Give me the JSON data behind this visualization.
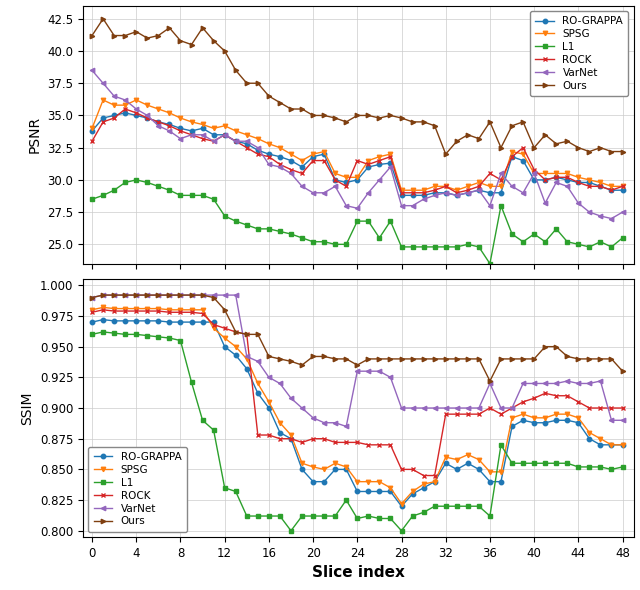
{
  "x": [
    0,
    1,
    2,
    3,
    4,
    5,
    6,
    7,
    8,
    9,
    10,
    11,
    12,
    13,
    14,
    15,
    16,
    17,
    18,
    19,
    20,
    21,
    22,
    23,
    24,
    25,
    26,
    27,
    28,
    29,
    30,
    31,
    32,
    33,
    34,
    35,
    36,
    37,
    38,
    39,
    40,
    41,
    42,
    43,
    44,
    45,
    46,
    47,
    48
  ],
  "psnr_rograpa": [
    33.8,
    34.8,
    35.0,
    35.2,
    35.0,
    34.8,
    34.5,
    34.3,
    34.0,
    33.8,
    34.0,
    33.5,
    33.5,
    33.0,
    32.8,
    32.3,
    32.0,
    31.8,
    31.5,
    31.0,
    31.8,
    32.0,
    30.0,
    29.8,
    30.0,
    31.0,
    31.2,
    31.3,
    28.8,
    28.8,
    28.8,
    29.0,
    29.0,
    28.8,
    29.0,
    29.2,
    29.0,
    29.0,
    31.8,
    31.5,
    30.0,
    30.0,
    30.2,
    30.0,
    29.8,
    29.8,
    29.5,
    29.2,
    29.2
  ],
  "psnr_spsg": [
    34.0,
    36.2,
    35.8,
    35.8,
    36.2,
    35.8,
    35.5,
    35.2,
    34.8,
    34.5,
    34.3,
    34.0,
    34.2,
    33.8,
    33.5,
    33.2,
    32.8,
    32.5,
    32.0,
    31.5,
    32.0,
    32.2,
    30.5,
    30.2,
    30.2,
    31.5,
    31.8,
    32.0,
    29.2,
    29.2,
    29.2,
    29.5,
    29.5,
    29.2,
    29.5,
    29.8,
    29.5,
    29.5,
    32.2,
    32.0,
    30.5,
    30.5,
    30.5,
    30.5,
    30.2,
    30.0,
    29.8,
    29.5,
    29.5
  ],
  "psnr_l1": [
    28.5,
    28.8,
    29.2,
    29.8,
    30.0,
    29.8,
    29.5,
    29.2,
    28.8,
    28.8,
    28.8,
    28.5,
    27.2,
    26.8,
    26.5,
    26.2,
    26.2,
    26.0,
    25.8,
    25.5,
    25.2,
    25.2,
    25.0,
    25.0,
    26.8,
    26.8,
    25.5,
    26.8,
    24.8,
    24.8,
    24.8,
    24.8,
    24.8,
    24.8,
    25.0,
    24.8,
    23.5,
    28.0,
    25.8,
    25.2,
    25.8,
    25.2,
    26.2,
    25.2,
    25.0,
    24.8,
    25.2,
    24.8,
    25.5
  ],
  "psnr_rock": [
    33.0,
    34.5,
    34.8,
    35.5,
    35.2,
    34.8,
    34.5,
    34.2,
    33.8,
    33.5,
    33.2,
    33.0,
    33.5,
    33.0,
    32.5,
    32.0,
    31.8,
    31.2,
    30.8,
    30.5,
    31.5,
    31.5,
    30.0,
    29.5,
    31.5,
    31.2,
    31.5,
    31.8,
    29.0,
    29.0,
    29.0,
    29.2,
    29.5,
    29.0,
    29.2,
    29.5,
    30.5,
    30.0,
    31.8,
    32.5,
    30.8,
    30.0,
    30.2,
    30.2,
    29.8,
    29.5,
    29.5,
    29.2,
    29.5
  ],
  "psnr_varnet": [
    38.5,
    37.5,
    36.5,
    36.2,
    35.5,
    35.0,
    34.2,
    33.8,
    33.2,
    33.5,
    33.5,
    33.0,
    33.5,
    33.0,
    33.0,
    32.5,
    31.2,
    31.0,
    30.5,
    29.5,
    29.0,
    29.0,
    29.5,
    28.0,
    27.8,
    29.0,
    30.0,
    31.0,
    28.0,
    28.0,
    28.5,
    28.8,
    29.0,
    28.8,
    29.0,
    29.2,
    28.0,
    30.5,
    29.5,
    29.0,
    30.5,
    28.2,
    29.8,
    29.5,
    28.2,
    27.5,
    27.2,
    27.0,
    27.5
  ],
  "psnr_ours": [
    41.2,
    42.5,
    41.2,
    41.2,
    41.5,
    41.0,
    41.2,
    41.8,
    40.8,
    40.5,
    41.8,
    40.8,
    40.0,
    38.5,
    37.5,
    37.5,
    36.5,
    36.0,
    35.5,
    35.5,
    35.0,
    35.0,
    34.8,
    34.5,
    35.0,
    35.0,
    34.8,
    35.0,
    34.8,
    34.5,
    34.5,
    34.2,
    32.0,
    33.0,
    33.5,
    33.2,
    34.5,
    32.5,
    34.2,
    34.5,
    32.5,
    33.5,
    32.8,
    33.0,
    32.5,
    32.2,
    32.5,
    32.2,
    32.2
  ],
  "ssim_rograpa": [
    0.97,
    0.972,
    0.971,
    0.971,
    0.971,
    0.971,
    0.971,
    0.97,
    0.97,
    0.97,
    0.97,
    0.97,
    0.95,
    0.943,
    0.932,
    0.912,
    0.9,
    0.88,
    0.875,
    0.85,
    0.84,
    0.84,
    0.85,
    0.85,
    0.832,
    0.832,
    0.832,
    0.832,
    0.82,
    0.83,
    0.835,
    0.84,
    0.855,
    0.85,
    0.855,
    0.85,
    0.84,
    0.84,
    0.885,
    0.89,
    0.888,
    0.888,
    0.89,
    0.89,
    0.888,
    0.875,
    0.87,
    0.87,
    0.87
  ],
  "ssim_spsg": [
    0.98,
    0.982,
    0.981,
    0.981,
    0.981,
    0.981,
    0.981,
    0.98,
    0.98,
    0.98,
    0.98,
    0.965,
    0.957,
    0.95,
    0.94,
    0.92,
    0.905,
    0.888,
    0.878,
    0.855,
    0.852,
    0.85,
    0.855,
    0.852,
    0.84,
    0.84,
    0.84,
    0.835,
    0.822,
    0.832,
    0.838,
    0.84,
    0.86,
    0.858,
    0.862,
    0.858,
    0.848,
    0.848,
    0.892,
    0.895,
    0.892,
    0.892,
    0.895,
    0.895,
    0.892,
    0.88,
    0.875,
    0.87,
    0.87
  ],
  "ssim_l1": [
    0.96,
    0.962,
    0.961,
    0.96,
    0.96,
    0.959,
    0.958,
    0.957,
    0.955,
    0.921,
    0.89,
    0.882,
    0.835,
    0.832,
    0.812,
    0.812,
    0.812,
    0.812,
    0.8,
    0.812,
    0.812,
    0.812,
    0.812,
    0.825,
    0.81,
    0.812,
    0.81,
    0.81,
    0.8,
    0.812,
    0.815,
    0.82,
    0.82,
    0.82,
    0.82,
    0.82,
    0.812,
    0.87,
    0.855,
    0.855,
    0.855,
    0.855,
    0.855,
    0.855,
    0.852,
    0.852,
    0.852,
    0.85,
    0.852
  ],
  "ssim_rock": [
    0.978,
    0.98,
    0.979,
    0.979,
    0.979,
    0.979,
    0.979,
    0.978,
    0.978,
    0.978,
    0.977,
    0.968,
    0.965,
    0.962,
    0.96,
    0.878,
    0.878,
    0.875,
    0.875,
    0.872,
    0.875,
    0.875,
    0.872,
    0.872,
    0.872,
    0.87,
    0.87,
    0.87,
    0.85,
    0.85,
    0.845,
    0.845,
    0.895,
    0.895,
    0.895,
    0.895,
    0.9,
    0.895,
    0.9,
    0.905,
    0.908,
    0.912,
    0.91,
    0.91,
    0.905,
    0.9,
    0.9,
    0.9,
    0.9
  ],
  "ssim_varnet": [
    0.99,
    0.992,
    0.992,
    0.992,
    0.992,
    0.992,
    0.992,
    0.992,
    0.992,
    0.992,
    0.992,
    0.992,
    0.992,
    0.992,
    0.942,
    0.938,
    0.925,
    0.92,
    0.908,
    0.9,
    0.892,
    0.888,
    0.888,
    0.885,
    0.93,
    0.93,
    0.93,
    0.925,
    0.9,
    0.9,
    0.9,
    0.9,
    0.9,
    0.9,
    0.9,
    0.9,
    0.92,
    0.9,
    0.9,
    0.92,
    0.92,
    0.92,
    0.92,
    0.922,
    0.92,
    0.92,
    0.922,
    0.89,
    0.89
  ],
  "ssim_ours": [
    0.99,
    0.992,
    0.992,
    0.992,
    0.992,
    0.992,
    0.992,
    0.992,
    0.992,
    0.992,
    0.992,
    0.99,
    0.98,
    0.962,
    0.96,
    0.96,
    0.942,
    0.94,
    0.938,
    0.935,
    0.942,
    0.942,
    0.94,
    0.94,
    0.935,
    0.94,
    0.94,
    0.94,
    0.94,
    0.94,
    0.94,
    0.94,
    0.94,
    0.94,
    0.94,
    0.94,
    0.922,
    0.94,
    0.94,
    0.94,
    0.94,
    0.95,
    0.95,
    0.942,
    0.94,
    0.94,
    0.94,
    0.94,
    0.93
  ],
  "colors": {
    "rograpa": "#1f77b4",
    "spsg": "#ff7f0e",
    "l1": "#2ca02c",
    "rock": "#d62728",
    "varnet": "#9467bd",
    "ours": "#7f3f10"
  },
  "markers": {
    "rograpa": "o",
    "spsg": "v",
    "l1": "s",
    "rock": "x",
    "varnet": "<",
    "ours": ">"
  },
  "labels": {
    "rograpa": "RO-GRAPPA",
    "spsg": "SPSG",
    "l1": "L1",
    "rock": "ROCK",
    "varnet": "VarNet",
    "ours": "Ours"
  },
  "psnr_ylim": [
    23.5,
    43.5
  ],
  "ssim_ylim": [
    0.795,
    1.005
  ],
  "xlim": [
    -0.8,
    49
  ],
  "xlabel": "Slice index",
  "ylabel_top": "PSNR",
  "ylabel_bottom": "SSIM",
  "xticks": [
    0,
    4,
    8,
    12,
    16,
    20,
    24,
    28,
    32,
    36,
    40,
    44,
    48
  ],
  "psnr_yticks": [
    25.0,
    27.5,
    30.0,
    32.5,
    35.0,
    37.5,
    40.0,
    42.5
  ],
  "ssim_yticks": [
    0.8,
    0.825,
    0.85,
    0.875,
    0.9,
    0.925,
    0.95,
    0.975,
    1.0
  ]
}
